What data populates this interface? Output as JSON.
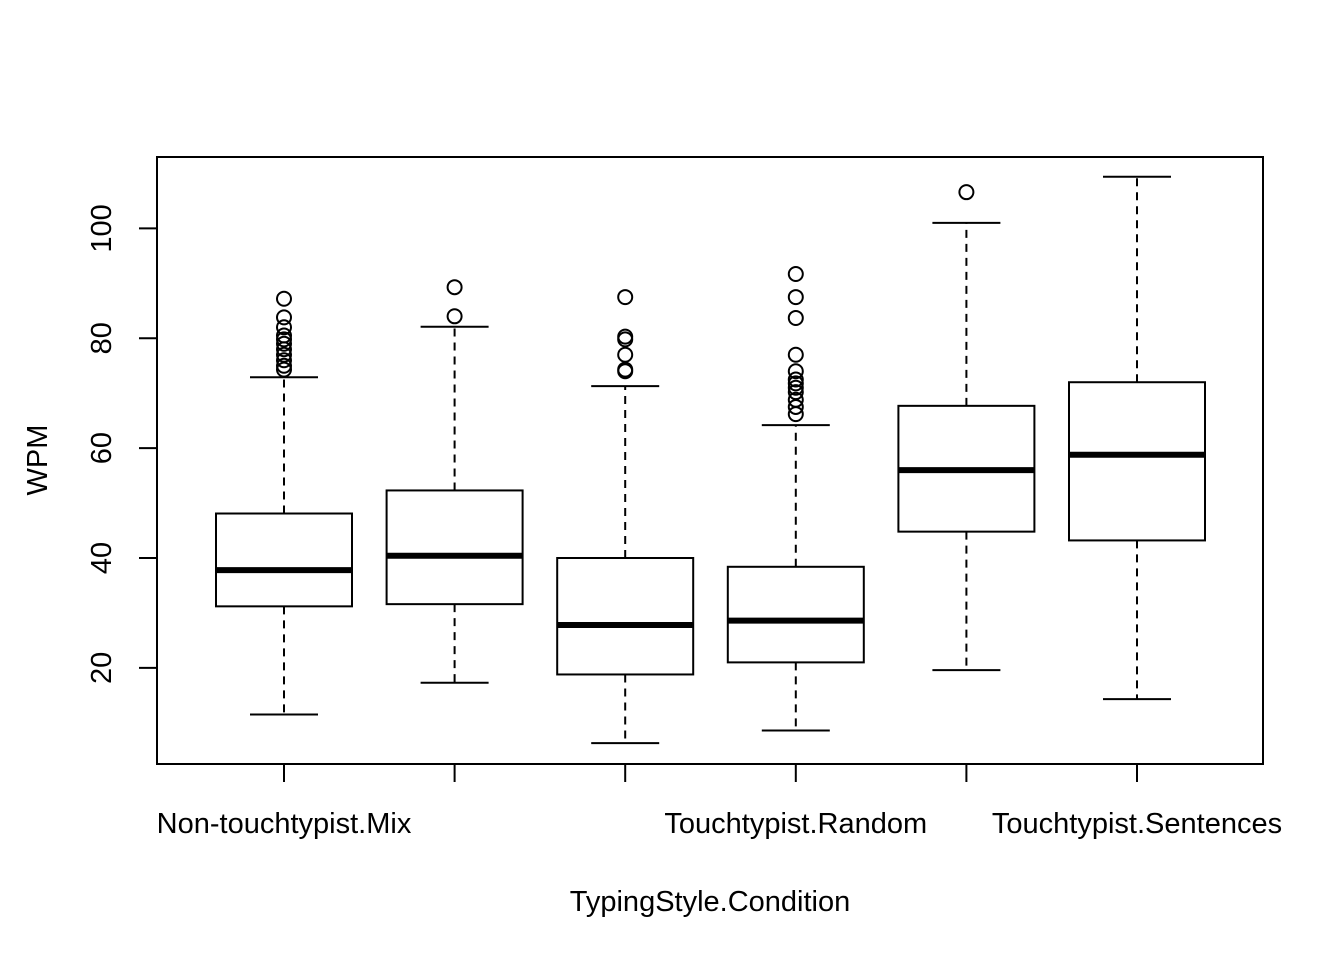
{
  "chart_data": {
    "type": "boxplot",
    "title": "",
    "xlabel": "TypingStyle.Condition",
    "ylabel": "WPM",
    "ylim": [
      2.5,
      113
    ],
    "yticks": [
      20,
      40,
      60,
      80,
      100
    ],
    "categories": [
      "Non-touchtypist.Mix",
      "",
      "",
      "Touchtypist.Random",
      "",
      "Touchtypist.Sentences"
    ],
    "boxes": [
      {
        "whisker_low": 11.5,
        "q1": 31.2,
        "median": 37.8,
        "q3": 48.1,
        "whisker_high": 72.9,
        "outliers": [
          74.3,
          75.0,
          76.0,
          77.0,
          78.0,
          79.0,
          79.8,
          80.5,
          82.0,
          83.8,
          87.2
        ]
      },
      {
        "whisker_low": 17.3,
        "q1": 31.6,
        "median": 40.4,
        "q3": 52.3,
        "whisker_high": 82.1,
        "outliers": [
          84.0,
          89.3
        ]
      },
      {
        "whisker_low": 6.3,
        "q1": 18.8,
        "median": 27.8,
        "q3": 40.0,
        "whisker_high": 71.3,
        "outliers": [
          74.0,
          74.3,
          77.0,
          79.8,
          80.3,
          87.5
        ]
      },
      {
        "whisker_low": 8.6,
        "q1": 21.0,
        "median": 28.6,
        "q3": 38.4,
        "whisker_high": 64.2,
        "outliers": [
          66.2,
          67.5,
          68.8,
          70.2,
          71.0,
          71.8,
          72.5,
          74.0,
          77.0,
          83.7,
          87.5,
          91.7
        ]
      },
      {
        "whisker_low": 19.6,
        "q1": 44.8,
        "median": 56.0,
        "q3": 67.7,
        "whisker_high": 101.0,
        "outliers": [
          106.6
        ]
      },
      {
        "whisker_low": 14.3,
        "q1": 43.2,
        "median": 58.8,
        "q3": 72.0,
        "whisker_high": 109.4,
        "outliers": []
      }
    ],
    "grid": false,
    "legend": "none"
  }
}
